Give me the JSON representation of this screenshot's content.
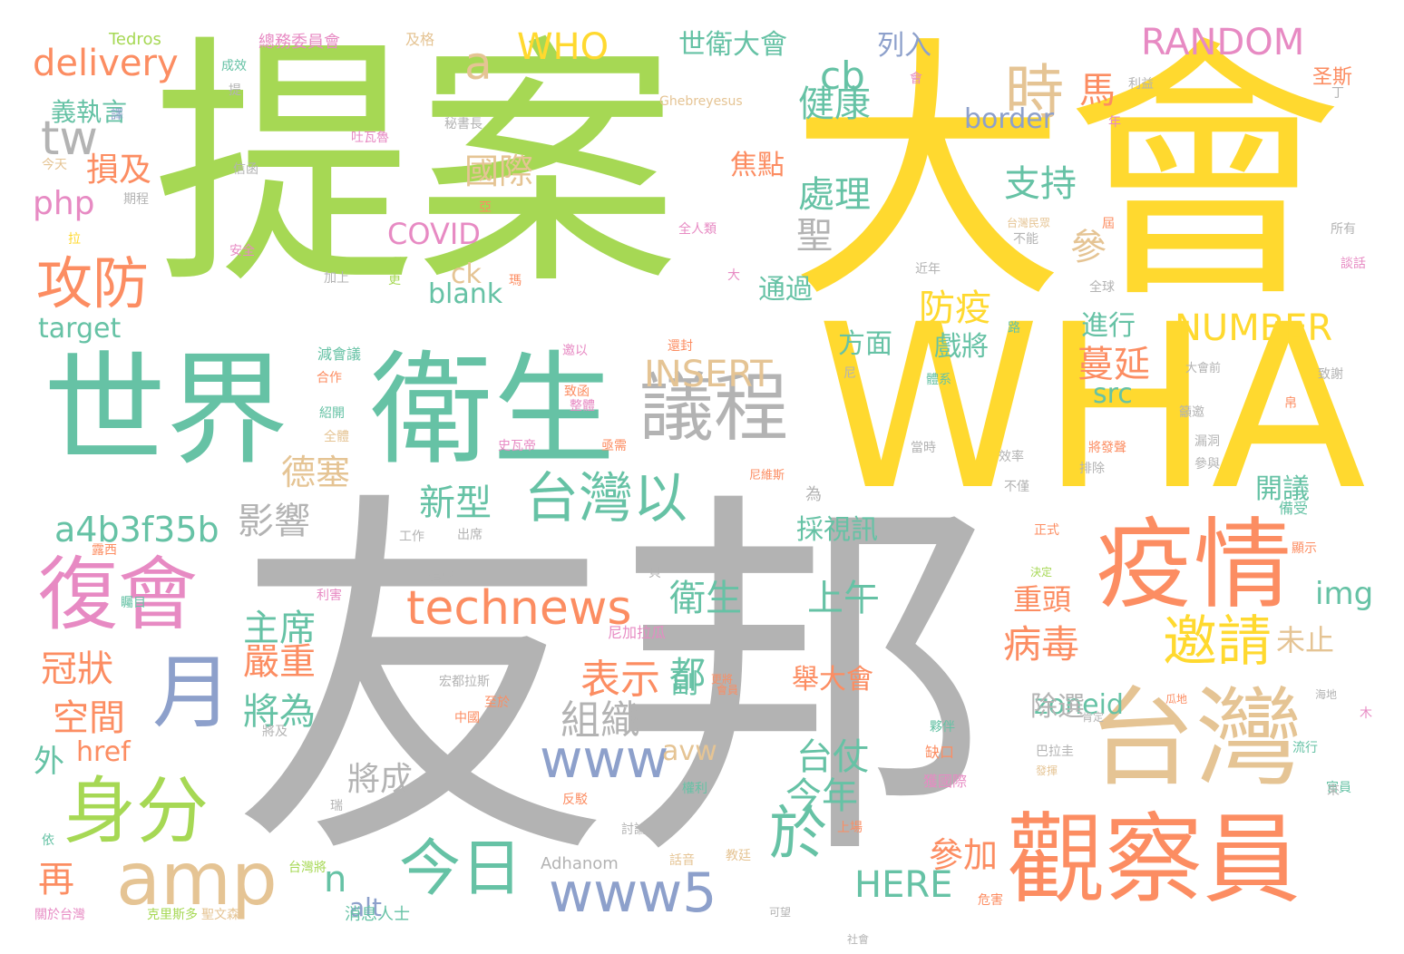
{
  "colors": {
    "green": "#a6d854",
    "yellow": "#ffd92f",
    "gray": "#b3b3b3",
    "teal": "#66c2a5",
    "orange": "#fc8d62",
    "pink": "#e78ac3",
    "blue": "#8da0cb",
    "tan": "#e5c494",
    "background": "#ffffff"
  },
  "words": [
    "提案",
    "大會",
    "友邦",
    "WHA",
    "世界",
    "衛生",
    "議程",
    "疫情",
    "台灣",
    "觀察員",
    "復會",
    "月",
    "身分",
    "amp",
    "technews",
    "www5",
    "www",
    "台灣以",
    "邀請",
    "攻防",
    "tw",
    "delivery",
    "php",
    "a4b3f35b",
    "今日",
    "於",
    "時",
    "a",
    "WHO",
    "RANDOM",
    "NUMBER",
    "INSERT",
    "HERE",
    "COVID",
    "blank",
    "target",
    "國際",
    "損及",
    "義執言",
    "世衛大會",
    "支持",
    "健康",
    "處理",
    "聖",
    "參",
    "防疫",
    "戲將",
    "蔓延",
    "src",
    "新型",
    "德塞",
    "影響",
    "組織",
    "主席",
    "嚴重",
    "將為",
    "冠狀",
    "空間",
    "表示",
    "都",
    "未止",
    "病毒",
    "zoneid",
    "除選",
    "重頭",
    "img",
    "上午",
    "衛生",
    "舉大會",
    "副",
    "台仗",
    "今年",
    "參加",
    "avw",
    "href",
    "外",
    "將成",
    "再",
    "n",
    "alt",
    "cb",
    "ck",
    "border",
    "列入",
    "馬",
    "焦點",
    "通過",
    "進行",
    "方面",
    "開議",
    "採視訊",
    "為",
    "Tedros",
    "Ghebreyesus",
    "Adhanom",
    "消息人士",
    "聖文森",
    "克里斯多",
    "關於台灣",
    "台灣將",
    "尼加拉瓜",
    "宏都拉斯",
    "巴拉圭",
    "獲國際",
    "台灣民眾",
    "全人類",
    "吐瓦魯",
    "秘書長",
    "總務委員會",
    "及格",
    "成效",
    "今天",
    "信函",
    "大會前",
    "海地",
    "瓜地",
    "流行",
    "官員",
    "討論",
    "教廷",
    "反駁",
    "權利",
    "發揮",
    "缺口",
    "決定",
    "正式",
    "尼維斯",
    "將發聲",
    "顯示",
    "備受",
    "危害",
    "社會",
    "話音",
    "可望",
    "上場",
    "夥伴",
    "肯定",
    "至於",
    "中國",
    "更將",
    "會員",
    "露西",
    "利害",
    "工作",
    "出席",
    "矚目",
    "這成",
    "將及",
    "紹開",
    "全體",
    "合作",
    "減會議",
    "加上",
    "更",
    "安全",
    "期程",
    "亞",
    "年",
    "利益",
    "丁",
    "圣斯",
    "會",
    "路",
    "全球",
    "所有",
    "近年",
    "不能",
    "效率",
    "不僅",
    "當時",
    "排除",
    "籲邀",
    "漏洞",
    "參與",
    "尼",
    "致函",
    "邀以",
    "還封",
    "史瓦帝",
    "體系",
    "整體",
    "亟需",
    "致謝",
    "談話",
    "屆",
    "來",
    "依",
    "瑞",
    "提",
    "譯",
    "大",
    "瑪",
    "拉",
    "貝",
    "木",
    "帛",
    "議",
    "蓋"
  ]
}
